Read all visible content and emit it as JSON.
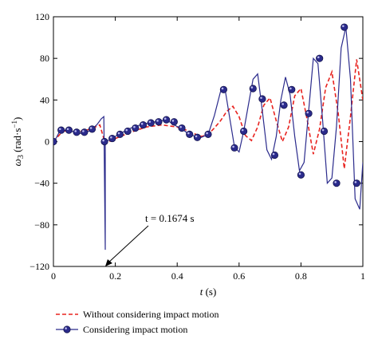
{
  "chart_data": {
    "type": "line",
    "x_axis": {
      "label_var": "t",
      "label_unit": " (s)",
      "range": [
        0,
        1
      ],
      "ticks": [
        0,
        0.2,
        0.4,
        0.6,
        0.8,
        1
      ],
      "tick_labels": [
        "0",
        "0.2",
        "0.4",
        "0.6",
        "0.8",
        "1"
      ]
    },
    "y_axis": {
      "label_var": "ω",
      "label_sub": "3",
      "label_unit_open": " (rad·s",
      "label_unit_sup": "−1",
      "label_unit_close": ")",
      "range": [
        -120,
        120
      ],
      "ticks": [
        -120,
        -80,
        -40,
        0,
        40,
        80,
        120
      ],
      "tick_labels": [
        "−120",
        "−80",
        "−40",
        "0",
        "40",
        "80",
        "120"
      ]
    },
    "grid": false,
    "legend_position": "bottom",
    "annotation": {
      "text": "t = 0.1674 s",
      "x": 0.1674,
      "y": -120
    },
    "series": [
      {
        "name": "Without considering impact motion",
        "style": "dashed",
        "color": "#e8231f",
        "x": [
          0,
          0.03,
          0.06,
          0.09,
          0.12,
          0.15,
          0.1674,
          0.2,
          0.25,
          0.3,
          0.35,
          0.4,
          0.43,
          0.46,
          0.48,
          0.5,
          0.52,
          0.54,
          0.56,
          0.58,
          0.6,
          0.62,
          0.64,
          0.66,
          0.68,
          0.7,
          0.72,
          0.74,
          0.76,
          0.78,
          0.8,
          0.82,
          0.84,
          0.86,
          0.88,
          0.9,
          0.92,
          0.94,
          0.96,
          0.98,
          1.0
        ],
        "y": [
          0,
          10,
          11,
          10,
          12,
          16,
          -2,
          3,
          9,
          14,
          16,
          14,
          11,
          7,
          5,
          7,
          13,
          20,
          29,
          34,
          24,
          6,
          1,
          14,
          35,
          42,
          20,
          0,
          14,
          44,
          51,
          21,
          -12,
          12,
          52,
          67,
          28,
          -26,
          24,
          79,
          40
        ]
      },
      {
        "name": "Considering impact motion",
        "style": "solid-markers",
        "color": "#2b2b8c",
        "x": [
          0,
          0.01,
          0.02,
          0.04,
          0.06,
          0.08,
          0.1,
          0.12,
          0.14,
          0.155,
          0.163,
          0.1674,
          0.1675,
          0.17,
          0.19,
          0.21,
          0.23,
          0.25,
          0.27,
          0.29,
          0.31,
          0.33,
          0.35,
          0.36,
          0.37,
          0.39,
          0.41,
          0.43,
          0.45,
          0.47,
          0.5,
          0.52,
          0.54,
          0.555,
          0.57,
          0.585,
          0.6,
          0.615,
          0.63,
          0.645,
          0.66,
          0.675,
          0.69,
          0.705,
          0.72,
          0.735,
          0.75,
          0.765,
          0.78,
          0.795,
          0.81,
          0.825,
          0.84,
          0.855,
          0.87,
          0.885,
          0.9,
          0.915,
          0.93,
          0.945,
          0.96,
          0.975,
          0.99,
          1.0
        ],
        "y": [
          0,
          4,
          10,
          11,
          10,
          8,
          8,
          11,
          16,
          22,
          24,
          -104,
          -2,
          0,
          3,
          7,
          10,
          13,
          15,
          17,
          18,
          19,
          20,
          21,
          20,
          16,
          13,
          9,
          6,
          3,
          7,
          25,
          48,
          50,
          22,
          -5,
          -10,
          10,
          35,
          60,
          65,
          30,
          -8,
          -17,
          5,
          40,
          62,
          45,
          5,
          -28,
          -20,
          30,
          80,
          75,
          20,
          -40,
          -35,
          15,
          90,
          110,
          60,
          -55,
          -65,
          -20
        ]
      }
    ],
    "markers_x": [
      0,
      0.025,
      0.05,
      0.075,
      0.1,
      0.125,
      0.165,
      0.19,
      0.215,
      0.24,
      0.265,
      0.29,
      0.315,
      0.34,
      0.365,
      0.39,
      0.415,
      0.44,
      0.465,
      0.5,
      0.55,
      0.585,
      0.615,
      0.645,
      0.675,
      0.715,
      0.745,
      0.77,
      0.8,
      0.825,
      0.86,
      0.875,
      0.915,
      0.94,
      0.98
    ],
    "markers_y": [
      0,
      11,
      11,
      9,
      9,
      12,
      0,
      3,
      7,
      10,
      13,
      16,
      18,
      19,
      21,
      19,
      13,
      7,
      4,
      7,
      50,
      -6,
      10,
      51,
      41,
      -13,
      35,
      50,
      -32,
      27,
      80,
      10,
      -40,
      110,
      -40
    ]
  }
}
